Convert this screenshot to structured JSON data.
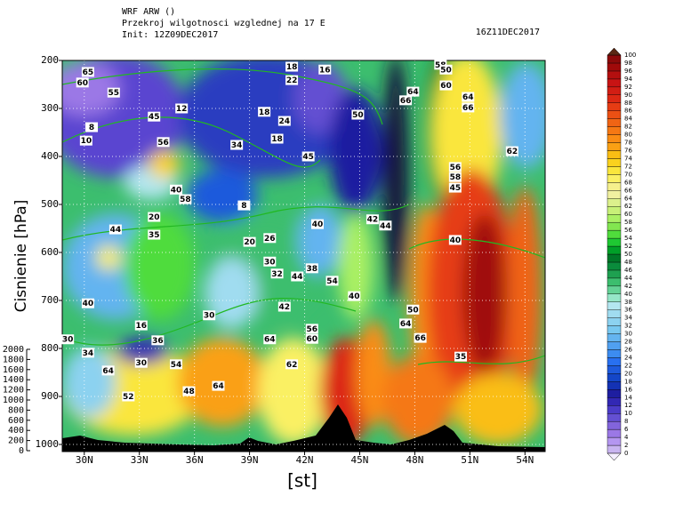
{
  "chart_data": {
    "type": "contour",
    "title": "WRF ARW ()",
    "subtitle": "Przekroj wilgotnosci wzglednej na 17 E",
    "init": "Init: 12Z09DEC2017",
    "valid": "16Z11DEC2017",
    "xlabel": "[st]",
    "ylabel": "Cisnienie [hPa]",
    "xlim": [
      28.8,
      55.1
    ],
    "xticks": [
      {
        "value": 30,
        "label": "30N"
      },
      {
        "value": 33,
        "label": "33N"
      },
      {
        "value": 36,
        "label": "36N"
      },
      {
        "value": 39,
        "label": "39N"
      },
      {
        "value": 42,
        "label": "42N"
      },
      {
        "value": 45,
        "label": "45N"
      },
      {
        "value": 48,
        "label": "48N"
      },
      {
        "value": 51,
        "label": "51N"
      },
      {
        "value": 54,
        "label": "54N"
      }
    ],
    "ylim": [
      1000,
      200
    ],
    "yticks": [
      200,
      300,
      400,
      500,
      600,
      700,
      800,
      900,
      1000
    ],
    "y2lim": [
      0,
      2000
    ],
    "y2ticks": [
      0,
      200,
      400,
      600,
      800,
      1000,
      1200,
      1400,
      1600,
      1800,
      2000
    ],
    "grid": true,
    "colorbar": {
      "levels": [
        0,
        2,
        4,
        6,
        8,
        10,
        12,
        14,
        16,
        18,
        20,
        22,
        24,
        26,
        28,
        30,
        32,
        34,
        36,
        38,
        40,
        42,
        44,
        46,
        48,
        50,
        52,
        54,
        56,
        58,
        60,
        62,
        64,
        66,
        68,
        70,
        72,
        74,
        76,
        78,
        80,
        82,
        84,
        86,
        88,
        90,
        92,
        94,
        96,
        98,
        100
      ],
      "colors": [
        "#c8b4f0",
        "#b496f0",
        "#9b78e6",
        "#8264dc",
        "#6450d2",
        "#4b3cc8",
        "#3228b4",
        "#1e1ea0",
        "#1432b4",
        "#1446c8",
        "#1e5adc",
        "#2870f0",
        "#3c8cf0",
        "#50a0f0",
        "#64b4f0",
        "#78c8f0",
        "#8cd2f0",
        "#a0dcf0",
        "#b4e6f0",
        "#96e6c8",
        "#64d296",
        "#3cbe6e",
        "#1ea050",
        "#0a8c3c",
        "#007828",
        "#00a028",
        "#1ec832",
        "#50dc3c",
        "#82e650",
        "#aaf064",
        "#c8f078",
        "#dcf08c",
        "#f0f0a0",
        "#f5f08c",
        "#faf064",
        "#fae63c",
        "#fad21e",
        "#fabe14",
        "#faa014",
        "#fa8c14",
        "#f57814",
        "#f06414",
        "#eb5014",
        "#e63c14",
        "#dc2814",
        "#d21e14",
        "#c81414",
        "#b40f0f",
        "#a00a0a",
        "#8c0a0a"
      ]
    },
    "contour_labels": [
      {
        "lat": 41.3,
        "p": 213,
        "value": 18
      },
      {
        "lat": 41.3,
        "p": 241,
        "value": 22
      },
      {
        "lat": 43.1,
        "p": 219,
        "value": 16
      },
      {
        "lat": 35.3,
        "p": 300,
        "value": 12
      },
      {
        "lat": 30.4,
        "p": 339,
        "value": 8
      },
      {
        "lat": 30.1,
        "p": 367,
        "value": 10
      },
      {
        "lat": 34.3,
        "p": 370,
        "value": 56
      },
      {
        "lat": 39.8,
        "p": 307,
        "value": 18
      },
      {
        "lat": 40.9,
        "p": 326,
        "value": 24
      },
      {
        "lat": 40.5,
        "p": 363,
        "value": 18
      },
      {
        "lat": 38.3,
        "p": 376,
        "value": 34
      },
      {
        "lat": 38.7,
        "p": 502,
        "value": 8
      },
      {
        "lat": 31.7,
        "p": 552,
        "value": 44
      },
      {
        "lat": 33.8,
        "p": 526,
        "value": 20
      },
      {
        "lat": 35.5,
        "p": 489,
        "value": 58
      },
      {
        "lat": 39.0,
        "p": 578,
        "value": 20
      },
      {
        "lat": 40.1,
        "p": 570,
        "value": 26
      },
      {
        "lat": 40.1,
        "p": 619,
        "value": 30
      },
      {
        "lat": 40.5,
        "p": 644,
        "value": 32
      },
      {
        "lat": 42.4,
        "p": 633,
        "value": 38
      },
      {
        "lat": 41.6,
        "p": 650,
        "value": 44
      },
      {
        "lat": 40.9,
        "p": 713,
        "value": 42
      },
      {
        "lat": 33.1,
        "p": 752,
        "value": 16
      },
      {
        "lat": 40.1,
        "p": 781,
        "value": 64
      },
      {
        "lat": 41.3,
        "p": 833,
        "value": 62
      },
      {
        "lat": 42.4,
        "p": 759,
        "value": 56
      },
      {
        "lat": 42.4,
        "p": 780,
        "value": 60
      },
      {
        "lat": 45.7,
        "p": 531,
        "value": 42
      },
      {
        "lat": 46.4,
        "p": 544,
        "value": 44
      },
      {
        "lat": 47.9,
        "p": 265,
        "value": 64
      },
      {
        "lat": 47.5,
        "p": 283,
        "value": 66
      },
      {
        "lat": 49.4,
        "p": 209,
        "value": 58
      },
      {
        "lat": 49.7,
        "p": 252,
        "value": 60
      },
      {
        "lat": 50.9,
        "p": 276,
        "value": 64
      },
      {
        "lat": 50.9,
        "p": 298,
        "value": 66
      },
      {
        "lat": 53.3,
        "p": 389,
        "value": 62
      },
      {
        "lat": 50.2,
        "p": 422,
        "value": 56
      },
      {
        "lat": 50.2,
        "p": 443,
        "value": 58
      },
      {
        "lat": 47.5,
        "p": 748,
        "value": 64
      },
      {
        "lat": 48.3,
        "p": 778,
        "value": 66
      },
      {
        "lat": 37.3,
        "p": 878,
        "value": 64
      },
      {
        "lat": 35.7,
        "p": 889,
        "value": 48
      },
      {
        "lat": 31.3,
        "p": 846,
        "value": 64
      },
      {
        "lat": 30.2,
        "p": 809,
        "value": 34
      },
      {
        "lat": 35.0,
        "p": 833,
        "value": 54
      },
      {
        "lat": 32.4,
        "p": 900,
        "value": 52
      },
      {
        "lat": 34.0,
        "p": 783,
        "value": 36
      },
      {
        "lat": 47.9,
        "p": 719,
        "value": 50
      },
      {
        "lat": 44.7,
        "p": 691,
        "value": 40
      },
      {
        "lat": 43.5,
        "p": 659,
        "value": 54
      }
    ],
    "line_color": "#22b822",
    "line_labels": [
      {
        "lat": 30.2,
        "p": 224,
        "value": 65
      },
      {
        "lat": 29.9,
        "p": 246,
        "value": 60
      },
      {
        "lat": 31.6,
        "p": 267,
        "value": 55
      },
      {
        "lat": 33.8,
        "p": 317,
        "value": 45
      },
      {
        "lat": 44.9,
        "p": 313,
        "value": 50
      },
      {
        "lat": 49.7,
        "p": 219,
        "value": 50
      },
      {
        "lat": 42.2,
        "p": 400,
        "value": 45
      },
      {
        "lat": 50.2,
        "p": 465,
        "value": 45
      },
      {
        "lat": 50.2,
        "p": 574,
        "value": 40
      },
      {
        "lat": 42.7,
        "p": 541,
        "value": 40
      },
      {
        "lat": 33.8,
        "p": 563,
        "value": 35
      },
      {
        "lat": 36.8,
        "p": 731,
        "value": 30
      },
      {
        "lat": 29.1,
        "p": 781,
        "value": 30
      },
      {
        "lat": 33.1,
        "p": 830,
        "value": 30
      },
      {
        "lat": 50.5,
        "p": 817,
        "value": 35
      },
      {
        "lat": 30.2,
        "p": 706,
        "value": 40
      },
      {
        "lat": 35.0,
        "p": 469,
        "value": 40
      }
    ]
  }
}
